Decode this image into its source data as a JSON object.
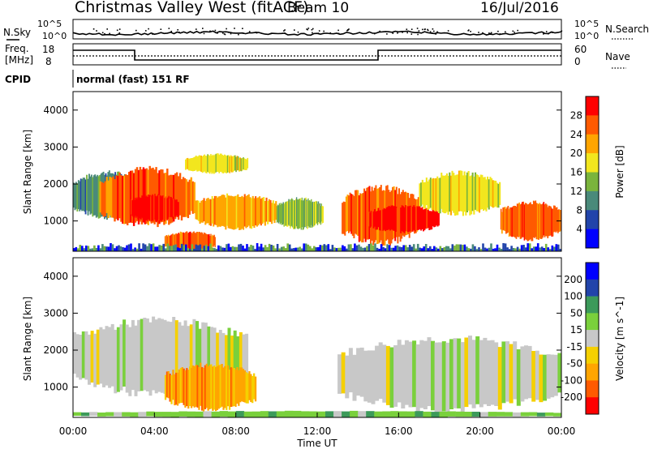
{
  "header": {
    "station": "Christmas Valley West (fitACF)",
    "beam": "Beam 10",
    "date": "16/Jul/2016"
  },
  "noise_panel": {
    "left_label": "N.Sky",
    "right_label": "N.Search",
    "left_ticks": [
      "10^5",
      "10^0"
    ],
    "right_ticks": [
      "10^5",
      "10^0"
    ]
  },
  "freq_panel": {
    "left_label_1": "Freq.",
    "left_label_2": "[MHz]",
    "left_ticks": [
      "18",
      "8"
    ],
    "right_label": "Nave",
    "right_ticks": [
      "60",
      "0"
    ]
  },
  "cpid_panel": {
    "label": "CPID",
    "text": "normal (fast) 151 RF"
  },
  "chart_data": [
    {
      "type": "heatmap",
      "panel": "power",
      "ylabel": "Slant Range [km]",
      "xlabel": "",
      "ylim": [
        180,
        4500
      ],
      "yticks": [
        "4000",
        "3000",
        "2000",
        "1000"
      ],
      "colorbar_label": "Power [dB]",
      "colorbar_ticks": [
        "28",
        "24",
        "20",
        "16",
        "12",
        "8",
        "4"
      ],
      "colorbar_colors": [
        "#0000ff",
        "#2244aa",
        "#4a8a7a",
        "#7ab43c",
        "#f2e61e",
        "#ffa500",
        "#ff5a00",
        "#ff0000"
      ],
      "regions": [
        {
          "x0": 0.0,
          "x1": 3.5,
          "r0": 1100,
          "r1": 2300,
          "level": 2
        },
        {
          "x0": 1.3,
          "x1": 6.0,
          "r0": 900,
          "r1": 2400,
          "level": 6
        },
        {
          "x0": 2.8,
          "x1": 5.2,
          "r0": 1000,
          "r1": 1700,
          "level": 7
        },
        {
          "x0": 5.5,
          "x1": 8.6,
          "r0": 2300,
          "r1": 2800,
          "level": 4
        },
        {
          "x0": 6.0,
          "x1": 10.0,
          "r0": 800,
          "r1": 1700,
          "level": 5
        },
        {
          "x0": 4.5,
          "x1": 7.0,
          "r0": 200,
          "r1": 700,
          "level": 6
        },
        {
          "x0": 10.0,
          "x1": 12.3,
          "r0": 800,
          "r1": 1600,
          "level": 3
        },
        {
          "x0": 13.2,
          "x1": 17.0,
          "r0": 400,
          "r1": 1900,
          "level": 6
        },
        {
          "x0": 14.5,
          "x1": 18.0,
          "r0": 700,
          "r1": 1400,
          "level": 7
        },
        {
          "x0": 17.0,
          "x1": 21.0,
          "r0": 1200,
          "r1": 2300,
          "level": 4
        },
        {
          "x0": 21.0,
          "x1": 24.0,
          "r0": 500,
          "r1": 1500,
          "level": 6
        }
      ],
      "noise_band": {
        "r0": 180,
        "r1": 400
      }
    },
    {
      "type": "heatmap",
      "panel": "velocity",
      "ylabel": "Slant Range [km]",
      "xlabel": "Time UT",
      "ylim": [
        180,
        4500
      ],
      "yticks": [
        "4000",
        "3000",
        "2000",
        "1000"
      ],
      "xticks": [
        "00:00",
        "04:00",
        "08:00",
        "12:00",
        "16:00",
        "20:00",
        "00:00"
      ],
      "colorbar_label": "Velocity [m s^-1]",
      "colorbar_ticks": [
        "200",
        "100",
        "50",
        "15",
        "-15",
        "-50",
        "-100",
        "-200"
      ],
      "colorbar_colors": [
        "#ff0000",
        "#ff5a00",
        "#ffa500",
        "#f5d000",
        "#c8c8c8",
        "#7ad03c",
        "#3c9a5a",
        "#2244aa",
        "#0000ff"
      ],
      "regions": [
        {
          "x0": 0.0,
          "x1": 8.6,
          "r0": 800,
          "r1": 2800,
          "level": 4
        },
        {
          "x0": 4.5,
          "x1": 9.0,
          "r0": 400,
          "r1": 1600,
          "level": 2
        },
        {
          "x0": 13.0,
          "x1": 24.0,
          "r0": 400,
          "r1": 2300,
          "level": 4
        },
        {
          "x0": 0.0,
          "x1": 24.0,
          "r0": 180,
          "r1": 350,
          "level": 5
        }
      ]
    }
  ]
}
